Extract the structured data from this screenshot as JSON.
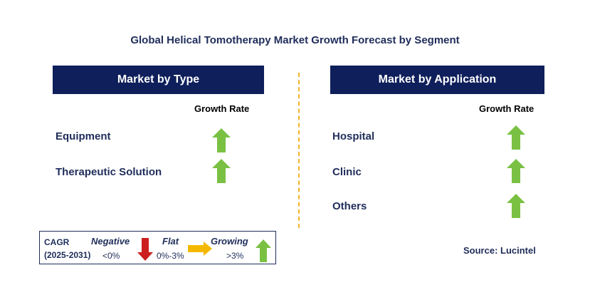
{
  "title": "Global Helical Tomotherapy Market Growth Forecast by Segment",
  "left_panel": {
    "header": "Market by Type",
    "growth_label": "Growth Rate",
    "rows": [
      {
        "label": "Equipment",
        "trend": "growing"
      },
      {
        "label": "Therapeutic Solution",
        "trend": "growing"
      }
    ]
  },
  "right_panel": {
    "header": "Market by Application",
    "growth_label": "Growth Rate",
    "rows": [
      {
        "label": "Hospital",
        "trend": "growing"
      },
      {
        "label": "Clinic",
        "trend": "growing"
      },
      {
        "label": "Others",
        "trend": "growing"
      }
    ]
  },
  "legend": {
    "cagr_label": "CAGR",
    "period": "(2025-2031)",
    "negative": {
      "label": "Negative",
      "range": "<0%"
    },
    "flat": {
      "label": "Flat",
      "range": "0%-3%"
    },
    "growing": {
      "label": "Growing",
      "range": ">3%"
    }
  },
  "source": "Source: Lucintel",
  "colors": {
    "header_bg": "#0e1f5b",
    "growing_arrow": "#7ac143",
    "negative_arrow": "#cc1f1f",
    "flat_arrow": "#f5b800",
    "divider": "#f0b429"
  }
}
